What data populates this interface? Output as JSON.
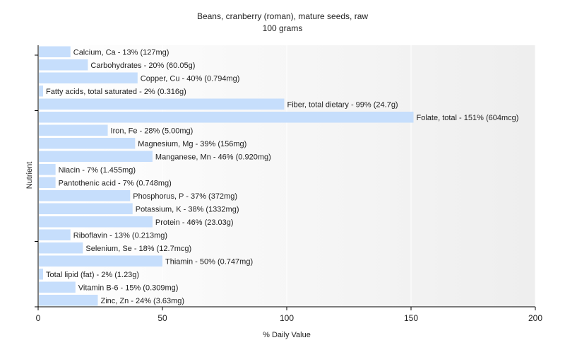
{
  "chart_data": {
    "type": "bar",
    "orientation": "horizontal",
    "title": "Beans, cranberry (roman), mature seeds, raw",
    "subtitle": "100 grams",
    "xlabel": "% Daily Value",
    "ylabel": "Nutrient",
    "xlim": [
      0,
      200
    ],
    "xticks": [
      0,
      50,
      100,
      150,
      200
    ],
    "grid": true,
    "bar_color": "#c6defc",
    "categories": [
      "Calcium, Ca",
      "Carbohydrates",
      "Copper, Cu",
      "Fatty acids, total saturated",
      "Fiber, total dietary",
      "Folate, total",
      "Iron, Fe",
      "Magnesium, Mg",
      "Manganese, Mn",
      "Niacin",
      "Pantothenic acid",
      "Phosphorus, P",
      "Potassium, K",
      "Protein",
      "Riboflavin",
      "Selenium, Se",
      "Thiamin",
      "Total lipid (fat)",
      "Vitamin B-6",
      "Zinc, Zn"
    ],
    "values": [
      13,
      20,
      40,
      2,
      99,
      151,
      28,
      39,
      46,
      7,
      7,
      37,
      38,
      46,
      13,
      18,
      50,
      2,
      15,
      24
    ],
    "labels": [
      "Calcium, Ca - 13% (127mg)",
      "Carbohydrates - 20% (60.05g)",
      "Copper, Cu - 40% (0.794mg)",
      "Fatty acids, total saturated - 2% (0.316g)",
      "Fiber, total dietary - 99% (24.7g)",
      "Folate, total - 151% (604mcg)",
      "Iron, Fe - 28% (5.00mg)",
      "Magnesium, Mg - 39% (156mg)",
      "Manganese, Mn - 46% (0.920mg)",
      "Niacin - 7% (1.455mg)",
      "Pantothenic acid - 7% (0.748mg)",
      "Phosphorus, P - 37% (372mg)",
      "Potassium, K - 38% (1332mg)",
      "Protein - 46% (23.03g)",
      "Riboflavin - 13% (0.213mg)",
      "Selenium, Se - 18% (12.7mcg)",
      "Thiamin - 50% (0.747mg)",
      "Total lipid (fat) - 2% (1.23g)",
      "Vitamin B-6 - 15% (0.309mg)",
      "Zinc, Zn - 24% (3.63mg)"
    ]
  }
}
